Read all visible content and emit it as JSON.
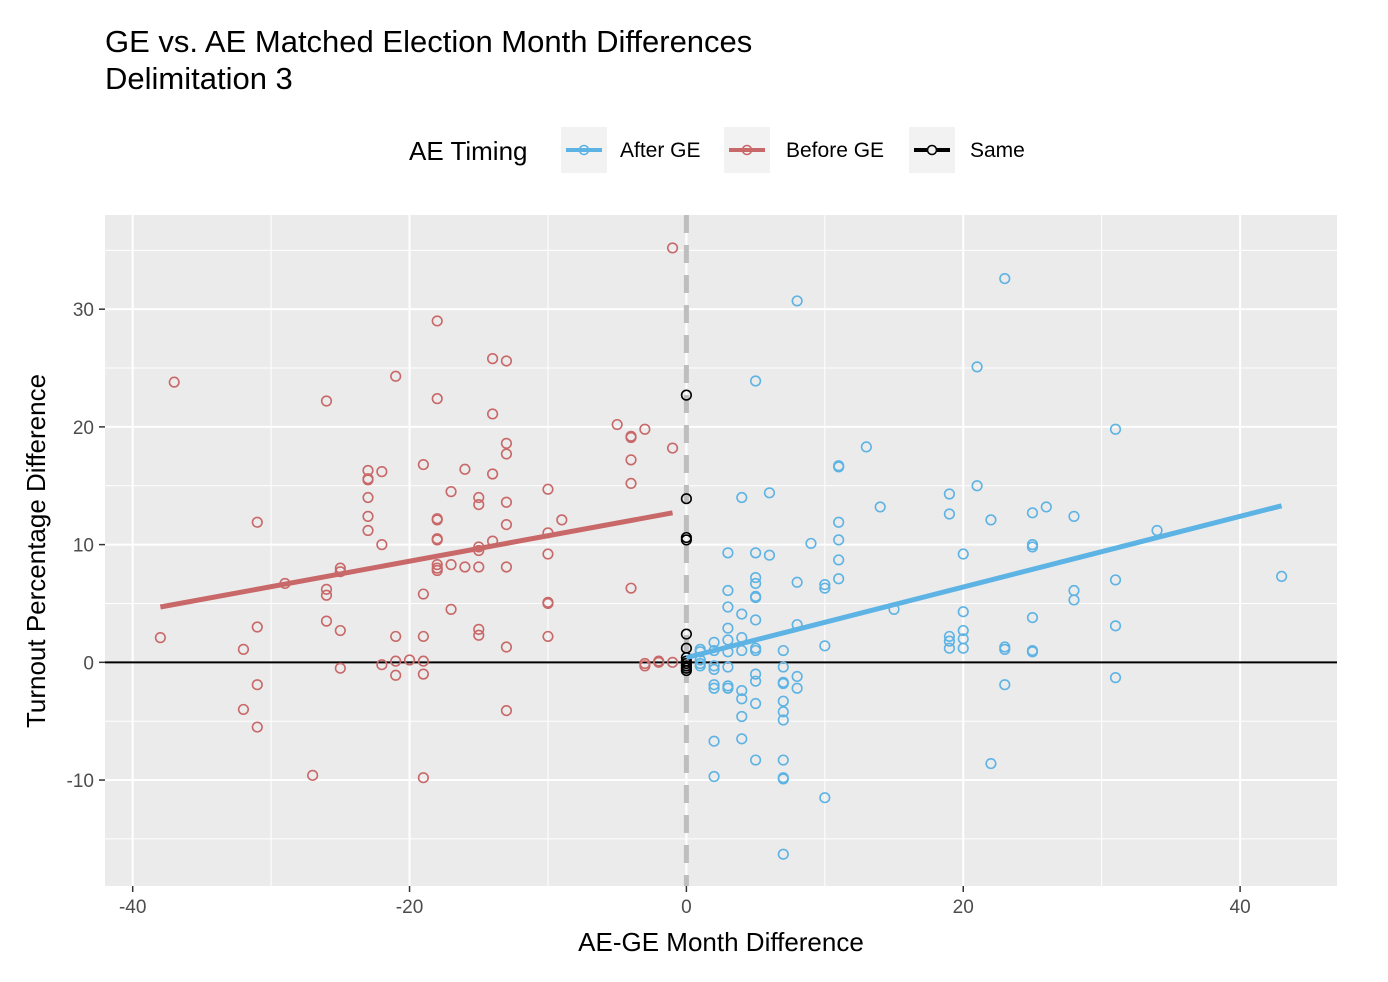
{
  "chart_data": {
    "type": "scatter",
    "title": "GE vs. AE Matched Election Month Differences",
    "subtitle": "Delimitation 3",
    "xlabel": "AE-GE Month Difference",
    "ylabel": "Turnout Percentage Difference",
    "xlim": [
      -42,
      47
    ],
    "ylim": [
      -19,
      38
    ],
    "x_ticks": [
      -40,
      -20,
      0,
      20,
      40
    ],
    "x_tick_labels": [
      "-40",
      "-20",
      "0",
      "20",
      "40"
    ],
    "y_ticks": [
      -10,
      0,
      10,
      20,
      30
    ],
    "y_tick_labels": [
      "-10",
      "0",
      "10",
      "20",
      "30"
    ],
    "grid": true,
    "legend": {
      "title": "AE Timing",
      "position": "top",
      "entries": [
        "After GE",
        "Before GE",
        "Same"
      ]
    },
    "reference_lines": {
      "horizontal_y": 0,
      "vertical_dashed_x": 0
    },
    "colors": {
      "after": "#5DB3E4",
      "before": "#C96868",
      "same": "#000000",
      "panel": "#EBEBEB",
      "grid": "#FFFFFF",
      "dashed": "#BEBEBE"
    },
    "series": [
      {
        "name": "Before GE",
        "color": "#C96868",
        "fit": [
          [
            -38,
            4.7
          ],
          [
            -1,
            12.7
          ]
        ],
        "points": [
          [
            -38,
            2.1
          ],
          [
            -37,
            23.8
          ],
          [
            -32,
            1.1
          ],
          [
            -32,
            -4.0
          ],
          [
            -31,
            11.9
          ],
          [
            -31,
            3.0
          ],
          [
            -31,
            -1.9
          ],
          [
            -31,
            -5.5
          ],
          [
            -29,
            6.7
          ],
          [
            -27,
            -9.6
          ],
          [
            -26,
            22.2
          ],
          [
            -26,
            6.2
          ],
          [
            -26,
            5.7
          ],
          [
            -26,
            3.5
          ],
          [
            -25,
            8.0
          ],
          [
            -25,
            7.7
          ],
          [
            -25,
            2.7
          ],
          [
            -25,
            -0.5
          ],
          [
            -23,
            16.3
          ],
          [
            -23,
            15.6
          ],
          [
            -23,
            15.5
          ],
          [
            -23,
            14.0
          ],
          [
            -23,
            12.4
          ],
          [
            -23,
            11.2
          ],
          [
            -22,
            16.2
          ],
          [
            -22,
            10.0
          ],
          [
            -22,
            -0.2
          ],
          [
            -21,
            24.3
          ],
          [
            -21,
            2.2
          ],
          [
            -21,
            0.1
          ],
          [
            -21,
            -1.1
          ],
          [
            -20,
            0.2
          ],
          [
            -19,
            16.8
          ],
          [
            -19,
            5.8
          ],
          [
            -19,
            2.2
          ],
          [
            -19,
            0.1
          ],
          [
            -19,
            -1.0
          ],
          [
            -19,
            -9.8
          ],
          [
            -18,
            29.0
          ],
          [
            -18,
            22.4
          ],
          [
            -18,
            12.2
          ],
          [
            -18,
            12.1
          ],
          [
            -18,
            10.5
          ],
          [
            -18,
            10.4
          ],
          [
            -18,
            8.3
          ],
          [
            -18,
            8.0
          ],
          [
            -18,
            7.8
          ],
          [
            -17,
            14.5
          ],
          [
            -17,
            8.3
          ],
          [
            -17,
            4.5
          ],
          [
            -16,
            16.4
          ],
          [
            -16,
            8.1
          ],
          [
            -15,
            14.0
          ],
          [
            -15,
            13.4
          ],
          [
            -15,
            9.8
          ],
          [
            -15,
            9.5
          ],
          [
            -15,
            8.1
          ],
          [
            -15,
            2.8
          ],
          [
            -15,
            2.3
          ],
          [
            -14,
            25.8
          ],
          [
            -14,
            21.1
          ],
          [
            -14,
            16.0
          ],
          [
            -14,
            10.3
          ],
          [
            -13,
            25.6
          ],
          [
            -13,
            18.6
          ],
          [
            -13,
            17.7
          ],
          [
            -13,
            13.6
          ],
          [
            -13,
            11.7
          ],
          [
            -13,
            8.1
          ],
          [
            -13,
            1.3
          ],
          [
            -13,
            -4.1
          ],
          [
            -10,
            14.7
          ],
          [
            -10,
            11.0
          ],
          [
            -10,
            9.2
          ],
          [
            -10,
            5.1
          ],
          [
            -10,
            5.0
          ],
          [
            -10,
            2.2
          ],
          [
            -9,
            12.1
          ],
          [
            -5,
            20.2
          ],
          [
            -4,
            19.2
          ],
          [
            -4,
            19.1
          ],
          [
            -4,
            17.2
          ],
          [
            -4,
            15.2
          ],
          [
            -4,
            6.3
          ],
          [
            -3,
            19.8
          ],
          [
            -3,
            -0.1
          ],
          [
            -3,
            -0.3
          ],
          [
            -2,
            0.1
          ],
          [
            -2,
            0.0
          ],
          [
            -1,
            35.2
          ],
          [
            -1,
            18.2
          ],
          [
            -1,
            0.0
          ]
        ]
      },
      {
        "name": "After GE",
        "color": "#5DB3E4",
        "fit": [
          [
            0,
            0.4
          ],
          [
            43,
            13.3
          ]
        ],
        "points": [
          [
            1,
            1.1
          ],
          [
            1,
            0.9
          ],
          [
            1,
            0.2
          ],
          [
            1,
            -0.1
          ],
          [
            1,
            -0.3
          ],
          [
            2,
            1.7
          ],
          [
            2,
            1.0
          ],
          [
            2,
            -0.3
          ],
          [
            2,
            -0.6
          ],
          [
            2,
            -1.9
          ],
          [
            2,
            -2.2
          ],
          [
            2,
            -6.7
          ],
          [
            2,
            -9.7
          ],
          [
            3,
            9.3
          ],
          [
            3,
            6.1
          ],
          [
            3,
            4.7
          ],
          [
            3,
            2.9
          ],
          [
            3,
            1.9
          ],
          [
            3,
            0.9
          ],
          [
            3,
            -0.4
          ],
          [
            3,
            -2.0
          ],
          [
            3,
            -2.2
          ],
          [
            4,
            14.0
          ],
          [
            4,
            4.1
          ],
          [
            4,
            2.1
          ],
          [
            4,
            1.0
          ],
          [
            4,
            -2.4
          ],
          [
            4,
            -3.1
          ],
          [
            4,
            -4.6
          ],
          [
            4,
            -6.5
          ],
          [
            5,
            23.9
          ],
          [
            5,
            9.3
          ],
          [
            5,
            7.2
          ],
          [
            5,
            6.7
          ],
          [
            5,
            5.6
          ],
          [
            5,
            5.5
          ],
          [
            5,
            3.6
          ],
          [
            5,
            1.2
          ],
          [
            5,
            1.0
          ],
          [
            5,
            -1.0
          ],
          [
            5,
            -1.6
          ],
          [
            5,
            -3.5
          ],
          [
            5,
            -8.3
          ],
          [
            6,
            14.4
          ],
          [
            6,
            9.1
          ],
          [
            7,
            1.0
          ],
          [
            7,
            -0.4
          ],
          [
            7,
            -1.7
          ],
          [
            7,
            -1.8
          ],
          [
            7,
            -3.3
          ],
          [
            7,
            -4.2
          ],
          [
            7,
            -4.9
          ],
          [
            7,
            -8.3
          ],
          [
            7,
            -9.8
          ],
          [
            7,
            -9.9
          ],
          [
            7,
            -16.3
          ],
          [
            8,
            30.7
          ],
          [
            8,
            6.8
          ],
          [
            8,
            3.2
          ],
          [
            8,
            -1.2
          ],
          [
            8,
            -2.2
          ],
          [
            9,
            10.1
          ],
          [
            10,
            6.6
          ],
          [
            10,
            6.3
          ],
          [
            10,
            1.4
          ],
          [
            10,
            -11.5
          ],
          [
            11,
            16.7
          ],
          [
            11,
            16.6
          ],
          [
            11,
            11.9
          ],
          [
            11,
            10.4
          ],
          [
            11,
            8.7
          ],
          [
            11,
            7.1
          ],
          [
            13,
            18.3
          ],
          [
            14,
            13.2
          ],
          [
            15,
            4.5
          ],
          [
            19,
            14.3
          ],
          [
            19,
            12.6
          ],
          [
            19,
            2.2
          ],
          [
            19,
            1.8
          ],
          [
            19,
            1.2
          ],
          [
            20,
            9.2
          ],
          [
            20,
            4.3
          ],
          [
            20,
            2.7
          ],
          [
            20,
            2.0
          ],
          [
            20,
            1.2
          ],
          [
            21,
            25.1
          ],
          [
            21,
            15.0
          ],
          [
            22,
            12.1
          ],
          [
            22,
            -8.6
          ],
          [
            23,
            32.6
          ],
          [
            23,
            1.3
          ],
          [
            23,
            1.1
          ],
          [
            23,
            -1.9
          ],
          [
            25,
            12.7
          ],
          [
            25,
            10.0
          ],
          [
            25,
            9.8
          ],
          [
            25,
            3.8
          ],
          [
            25,
            1.0
          ],
          [
            25,
            0.9
          ],
          [
            26,
            13.2
          ],
          [
            28,
            12.4
          ],
          [
            28,
            6.1
          ],
          [
            28,
            5.3
          ],
          [
            31,
            19.8
          ],
          [
            31,
            7.0
          ],
          [
            31,
            3.1
          ],
          [
            31,
            -1.3
          ],
          [
            34,
            11.2
          ],
          [
            43,
            7.3
          ]
        ]
      },
      {
        "name": "Same",
        "color": "#000000",
        "fit": [],
        "points": [
          [
            0,
            22.7
          ],
          [
            0,
            13.9
          ],
          [
            0,
            10.6
          ],
          [
            0,
            10.4
          ],
          [
            0,
            2.4
          ],
          [
            0,
            1.2
          ],
          [
            0,
            0.4
          ],
          [
            0,
            0.1
          ],
          [
            0,
            -0.1
          ],
          [
            0,
            -0.3
          ],
          [
            0,
            -0.5
          ],
          [
            0,
            -0.7
          ]
        ]
      }
    ]
  }
}
